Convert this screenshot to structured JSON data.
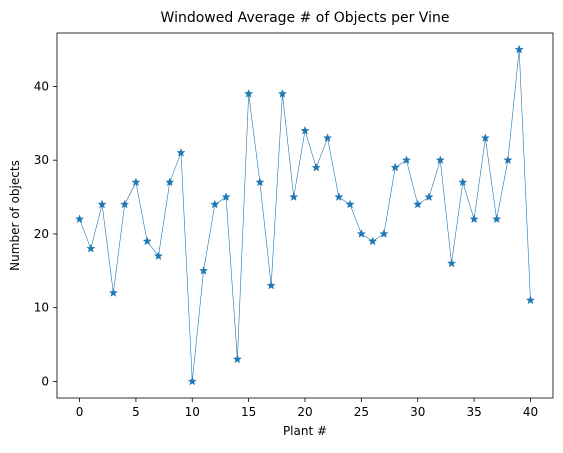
{
  "chart_data": {
    "type": "line",
    "title": "Windowed Average # of Objects per Vine",
    "xlabel": "Plant #",
    "ylabel": "Number of objects",
    "x": [
      0,
      1,
      2,
      3,
      4,
      5,
      6,
      7,
      8,
      9,
      10,
      11,
      12,
      13,
      14,
      15,
      16,
      17,
      18,
      19,
      20,
      21,
      22,
      23,
      24,
      25,
      26,
      27,
      28,
      29,
      30,
      31,
      32,
      33,
      34,
      35,
      36,
      37,
      38,
      39,
      40
    ],
    "series": [
      {
        "values": [
          22,
          18,
          24,
          12,
          24,
          27,
          19,
          17,
          27,
          31,
          0,
          15,
          24,
          25,
          3,
          39,
          27,
          13,
          39,
          25,
          34,
          29,
          33,
          25,
          24,
          20,
          19,
          20,
          29,
          30,
          24,
          25,
          30,
          16,
          27,
          22,
          33,
          22,
          30,
          45,
          11
        ],
        "color": "#1f77b4",
        "marker": "star"
      }
    ],
    "xlim": [
      -2,
      42
    ],
    "ylim": [
      -2.25,
      47.25
    ],
    "xticks": [
      0,
      5,
      10,
      15,
      20,
      25,
      30,
      35,
      40
    ],
    "yticks": [
      0,
      10,
      20,
      30,
      40
    ],
    "grid": false,
    "legend": "none"
  }
}
